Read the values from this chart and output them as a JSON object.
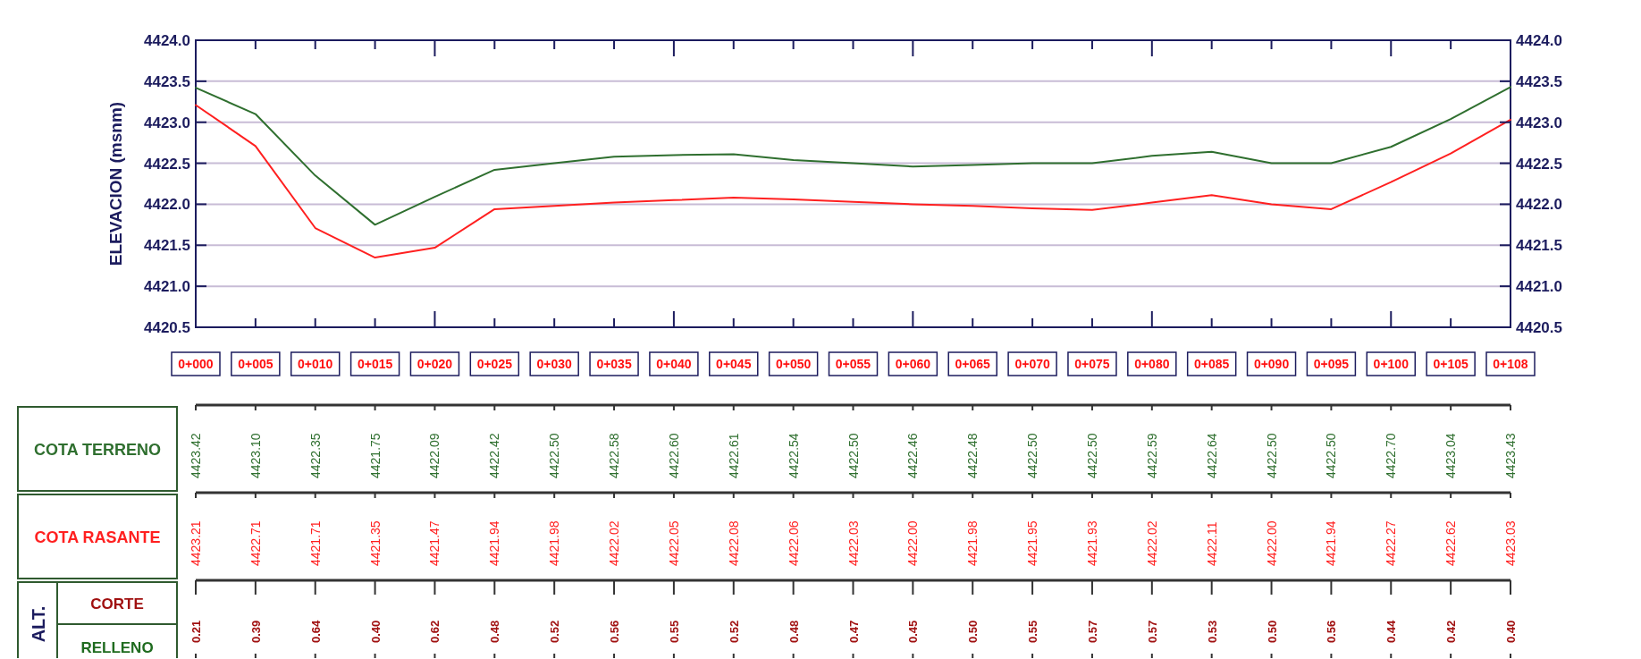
{
  "chart_data": {
    "type": "line",
    "ylabel": "ELEVACION (msnm)",
    "categories": [
      "0+000",
      "0+005",
      "0+010",
      "0+015",
      "0+020",
      "0+025",
      "0+030",
      "0+035",
      "0+040",
      "0+045",
      "0+050",
      "0+055",
      "0+060",
      "0+065",
      "0+070",
      "0+075",
      "0+080",
      "0+085",
      "0+090",
      "0+095",
      "0+100",
      "0+105",
      "0+108"
    ],
    "ylim": [
      4420.5,
      4424
    ],
    "yticks": [
      {
        "value": 4420.5,
        "label": "4420.5"
      },
      {
        "value": 4421,
        "label": "4421.0"
      },
      {
        "value": 4421.5,
        "label": "4421.5"
      },
      {
        "value": 4422,
        "label": "4422.0"
      },
      {
        "value": 4422.5,
        "label": "4422.5"
      },
      {
        "value": 4423,
        "label": "4423.0"
      },
      {
        "value": 4423.5,
        "label": "4423.5"
      },
      {
        "value": 4424,
        "label": "4424.0"
      }
    ],
    "y2lim": [
      4420.5,
      4424
    ],
    "y2ticks": [
      {
        "value": 4420.5,
        "label": "4420.5"
      },
      {
        "value": 4421,
        "label": "4421.0"
      },
      {
        "value": 4421.5,
        "label": "4421.5"
      },
      {
        "value": 4422,
        "label": "4422.0"
      },
      {
        "value": 4422.5,
        "label": "4422.5"
      },
      {
        "value": 4423,
        "label": "4423.0"
      },
      {
        "value": 4423.5,
        "label": "4423.5"
      },
      {
        "value": 4424,
        "label": "4424.0"
      }
    ],
    "grid": "y",
    "series": [
      {
        "name": "COTA TERRENO",
        "color": "#2f6f2f",
        "values": [
          4423.42,
          4423.1,
          4422.35,
          4421.75,
          4422.09,
          4422.42,
          4422.5,
          4422.58,
          4422.6,
          4422.61,
          4422.54,
          4422.5,
          4422.46,
          4422.48,
          4422.5,
          4422.5,
          4422.59,
          4422.64,
          4422.5,
          4422.5,
          4422.7,
          4423.04,
          4423.43
        ],
        "value_labels": [
          "4423.42",
          "4423.10",
          "4422.35",
          "4421.75",
          "4422.09",
          "4422.42",
          "4422.50",
          "4422.58",
          "4422.60",
          "4422.61",
          "4422.54",
          "4422.50",
          "4422.46",
          "4422.48",
          "4422.50",
          "4422.50",
          "4422.59",
          "4422.64",
          "4422.50",
          "4422.50",
          "4422.70",
          "4423.04",
          "4423.43"
        ]
      },
      {
        "name": "COTA RASANTE",
        "color": "#ff2020",
        "values": [
          4423.21,
          4422.71,
          4421.71,
          4421.35,
          4421.47,
          4421.94,
          4421.98,
          4422.02,
          4422.05,
          4422.08,
          4422.06,
          4422.03,
          4422.0,
          4421.98,
          4421.95,
          4421.93,
          4422.02,
          4422.11,
          4422.0,
          4421.94,
          4422.27,
          4422.62,
          4423.03
        ],
        "value_labels": [
          "4423.21",
          "4422.71",
          "4421.71",
          "4421.35",
          "4421.47",
          "4421.94",
          "4421.98",
          "4422.02",
          "4422.05",
          "4422.08",
          "4422.06",
          "4422.03",
          "4422.00",
          "4421.98",
          "4421.95",
          "4421.93",
          "4422.02",
          "4422.11",
          "4422.00",
          "4421.94",
          "4422.27",
          "4422.62",
          "4423.03"
        ]
      }
    ],
    "annotations": [
      "ALT.",
      "CORTE",
      "RELLENO",
      "0.21",
      "0.39",
      "0.64",
      "0.40",
      "0.62",
      "0.48",
      "0.52",
      "0.56",
      "0.55",
      "0.52",
      "0.48",
      "0.47",
      "0.45",
      "0.50",
      "0.55",
      "0.57",
      "0.57",
      "0.53",
      "0.50",
      "0.56",
      "0.44",
      "0.42",
      "0.40"
    ]
  }
}
